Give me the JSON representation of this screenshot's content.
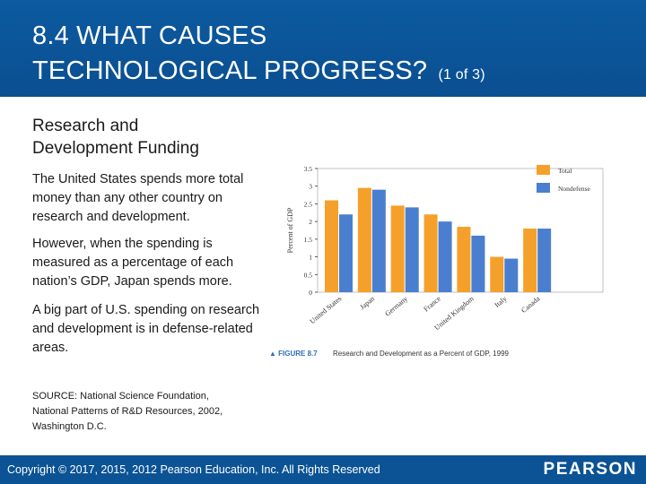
{
  "header": {
    "title_line1": "8.4 WHAT CAUSES",
    "title_line2": "TECHNOLOGICAL PROGRESS?",
    "title_suffix": "(1 of 3)"
  },
  "body": {
    "subtitle_line1": "Research and",
    "subtitle_line2": "Development Funding",
    "paragraph1": "The United States spends more total money than any other country on research and development.",
    "paragraph2": "However, when the spending is measured as a percentage of each nation’s GDP, Japan spends more.",
    "paragraph3": "A big part of U.S. spending on research and development is in defense-related areas.",
    "source": "SOURCE: National Science Foundation, National Patterns of R&D Resources, 2002, Washington D.C."
  },
  "footer": {
    "copyright": "Copyright © 2017, 2015, 2012 Pearson Education, Inc. All Rights Reserved",
    "logo_text": "PEARSON"
  },
  "colors": {
    "header_bg": "#0b5394",
    "total": "#f5a02a",
    "nondefense": "#4a7fd0",
    "axis": "#333333"
  },
  "chart_data": {
    "type": "bar",
    "title": "Research and Development as a Percent of GDP, 1999",
    "figure_label": "▲ FIGURE 8.7",
    "ylabel": "Percent of GDP",
    "xlabel": "",
    "ylim": [
      0,
      3.5
    ],
    "yticks": [
      "0",
      "0.5",
      "1",
      "1.5",
      "2",
      "2.5",
      "3",
      "3.5"
    ],
    "grid": false,
    "legend_position": "top-right",
    "categories": [
      "United States",
      "Japan",
      "Germany",
      "France",
      "United Kingdom",
      "Italy",
      "Canada"
    ],
    "series": [
      {
        "name": "Total",
        "values": [
          2.6,
          2.95,
          2.45,
          2.2,
          1.85,
          1.0,
          1.8
        ]
      },
      {
        "name": "Nondefense",
        "values": [
          2.2,
          2.9,
          2.4,
          2.0,
          1.6,
          0.95,
          1.8
        ]
      }
    ]
  }
}
